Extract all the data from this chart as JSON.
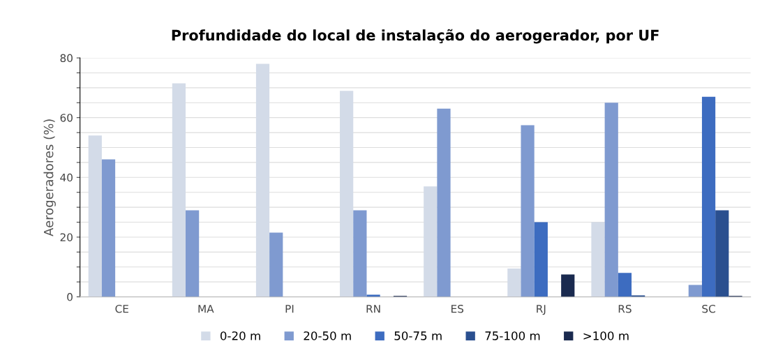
{
  "chart_data": {
    "type": "bar",
    "title": "Profundidade do local de instalação do aerogerador, por UF",
    "ylabel": "Aerogeradores (%)",
    "categories": [
      "CE",
      "MA",
      "PI",
      "RN",
      "ES",
      "RJ",
      "RS",
      "SC"
    ],
    "series": [
      {
        "name": "0-20 m",
        "color": "#d3dbe8",
        "values": [
          54,
          71.5,
          78,
          69,
          37,
          9.5,
          25,
          0
        ]
      },
      {
        "name": "20-50 m",
        "color": "#7f9ad0",
        "values": [
          46,
          29,
          21.5,
          29,
          63,
          57.5,
          65,
          4
        ]
      },
      {
        "name": "50-75 m",
        "color": "#3d6cc0",
        "values": [
          0,
          0,
          0,
          0.7,
          0,
          25,
          8,
          67
        ]
      },
      {
        "name": "75-100 m",
        "color": "#2a4f8f",
        "values": [
          0,
          0,
          0,
          0,
          0,
          0,
          0.5,
          29
        ]
      },
      {
        "name": ">100 m",
        "color": "#1a2a4f",
        "values": [
          0,
          0,
          0,
          0.3,
          0,
          7.5,
          0,
          0.3
        ]
      }
    ],
    "ylim": [
      0,
      80
    ],
    "yticks": [
      0,
      {
        "value": 5,
        "label": null
      },
      {
        "value": 10,
        "label": null
      },
      {
        "value": 15,
        "label": null
      },
      20,
      {
        "value": 25,
        "label": null
      },
      {
        "value": 30,
        "label": null
      },
      {
        "value": 35,
        "label": null
      },
      40,
      {
        "value": 45,
        "label": null
      },
      {
        "value": 50,
        "label": null
      },
      {
        "value": 55,
        "label": null
      },
      60,
      {
        "value": 65,
        "label": null
      },
      {
        "value": 70,
        "label": null
      },
      {
        "value": 75,
        "label": null
      },
      80
    ],
    "grid": "y",
    "legend": "bottom"
  }
}
